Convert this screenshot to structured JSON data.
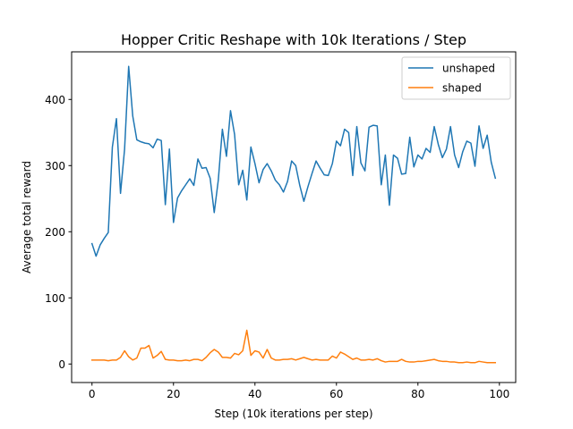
{
  "chart_data": {
    "type": "line",
    "title": "Hopper Critic Reshape with 10k Iterations / Step",
    "xlabel": "Step (10k iterations per step)",
    "ylabel": "Average total reward",
    "xlim": [
      -5,
      104
    ],
    "ylim": [
      -28,
      472
    ],
    "xticks": [
      0,
      20,
      40,
      60,
      80,
      100
    ],
    "yticks": [
      0,
      100,
      200,
      300,
      400
    ],
    "grid": false,
    "legend_position": "top-right",
    "x": [
      0,
      1,
      2,
      3,
      4,
      5,
      6,
      7,
      8,
      9,
      10,
      11,
      12,
      13,
      14,
      15,
      16,
      17,
      18,
      19,
      20,
      21,
      22,
      23,
      24,
      25,
      26,
      27,
      28,
      29,
      30,
      31,
      32,
      33,
      34,
      35,
      36,
      37,
      38,
      39,
      40,
      41,
      42,
      43,
      44,
      45,
      46,
      47,
      48,
      49,
      50,
      51,
      52,
      53,
      54,
      55,
      56,
      57,
      58,
      59,
      60,
      61,
      62,
      63,
      64,
      65,
      66,
      67,
      68,
      69,
      70,
      71,
      72,
      73,
      74,
      75,
      76,
      77,
      78,
      79,
      80,
      81,
      82,
      83,
      84,
      85,
      86,
      87,
      88,
      89,
      90,
      91,
      92,
      93,
      94,
      95,
      96,
      97,
      98,
      99
    ],
    "series": [
      {
        "name": "unshaped",
        "color": "#1f77b4",
        "values": [
          182,
          163,
          180,
          190,
          199,
          328,
          371,
          258,
          325,
          450,
          375,
          339,
          336,
          334,
          333,
          327,
          340,
          338,
          241,
          325,
          214,
          251,
          262,
          271,
          280,
          270,
          310,
          296,
          297,
          281,
          229,
          278,
          355,
          314,
          383,
          347,
          271,
          293,
          248,
          328,
          303,
          274,
          294,
          303,
          292,
          278,
          271,
          260,
          276,
          307,
          300,
          270,
          246,
          268,
          288,
          307,
          296,
          286,
          285,
          303,
          337,
          330,
          355,
          350,
          285,
          359,
          304,
          292,
          358,
          361,
          360,
          271,
          316,
          240,
          316,
          311,
          287,
          288,
          343,
          298,
          316,
          310,
          326,
          320,
          359,
          332,
          312,
          325,
          359,
          316,
          297,
          321,
          337,
          334,
          299,
          360,
          326,
          346,
          305,
          281
        ]
      },
      {
        "name": "shaped",
        "color": "#ff7f0e",
        "values": [
          6,
          6,
          6,
          6,
          5,
          6,
          6,
          10,
          20,
          11,
          6,
          9,
          24,
          24,
          28,
          9,
          13,
          19,
          7,
          6,
          6,
          5,
          5,
          6,
          5,
          7,
          7,
          5,
          10,
          17,
          22,
          18,
          10,
          10,
          9,
          16,
          14,
          20,
          51,
          13,
          20,
          18,
          9,
          22,
          9,
          6,
          6,
          7,
          7,
          8,
          6,
          8,
          10,
          8,
          6,
          7,
          6,
          6,
          6,
          12,
          9,
          18,
          15,
          11,
          7,
          9,
          6,
          6,
          7,
          6,
          8,
          5,
          3,
          4,
          4,
          4,
          7,
          4,
          3,
          3,
          4,
          4,
          5,
          6,
          7,
          5,
          4,
          4,
          3,
          3,
          2,
          2,
          3,
          2,
          2,
          4,
          3,
          2,
          2,
          2
        ]
      }
    ]
  }
}
